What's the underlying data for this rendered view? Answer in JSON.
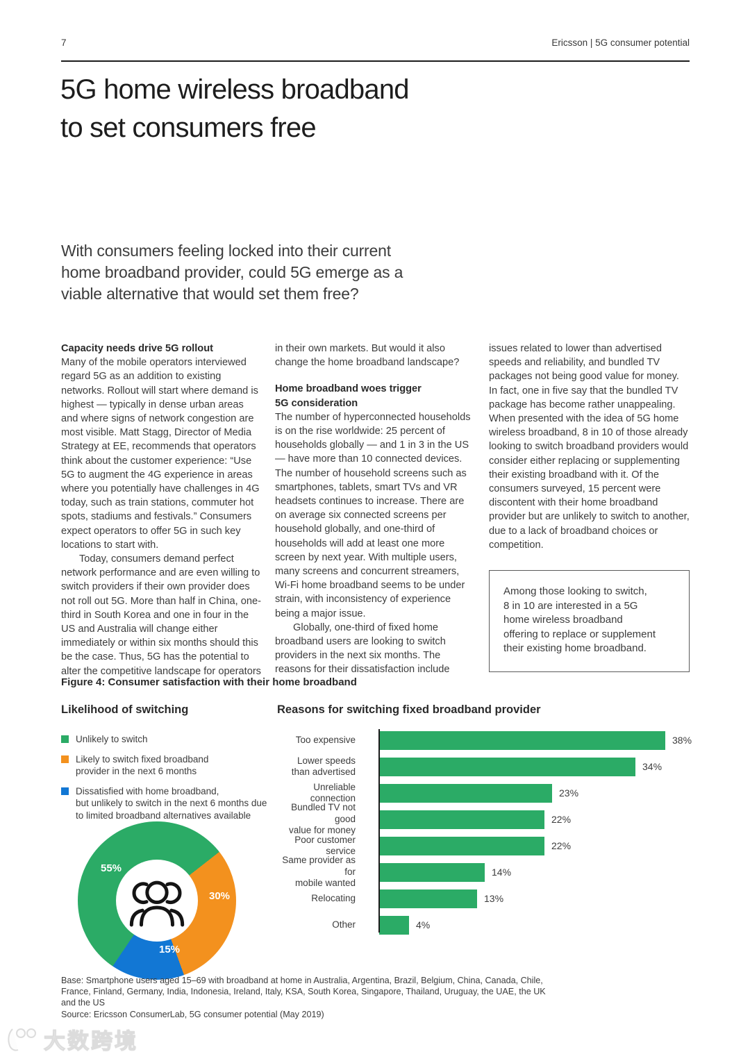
{
  "header": {
    "page_number": "7",
    "right": "Ericsson  |  5G consumer potential"
  },
  "title": "5G home wireless broadband\nto set consumers free",
  "intro": "With consumers feeling locked into their current\nhome broadband provider, could 5G emerge as a\nviable alternative that would set them free?",
  "article": {
    "col1": {
      "heading": "Capacity needs drive 5G rollout",
      "para1": "Many of the mobile operators interviewed regard 5G as an addition to existing networks. Rollout will start where demand is highest — typically in dense urban areas and where signs of network congestion are most visible. Matt Stagg, Director of Media Strategy at EE, recommends that operators think about the customer experience: “Use 5G to augment the 4G experience in areas where you potentially have challenges in 4G today, such as train stations, commuter hot spots, stadiums and festivals.” Consumers expect operators to offer 5G in such key locations to start with.",
      "para2": "Today, consumers demand perfect network performance and are even willing to switch providers if their own provider does not roll out 5G. More than half in China, one-third in South Korea and one in four in the US and Australia will change either immediately or within six months should this be the case. Thus, 5G has the potential to alter the competitive landscape for operators"
    },
    "col2": {
      "lead": "in their own markets. But would it also change the home broadband landscape?",
      "heading": "Home broadband woes trigger\n5G consideration",
      "para1": "The number of hyperconnected households is on the rise worldwide: 25 percent of households globally — and 1 in 3 in the US — have more than 10 connected devices. The number of household screens such as smartphones, tablets, smart TVs and VR headsets continues to increase. There are on average six connected screens per household globally, and one-third of households will add at least one more screen by next year. With multiple users, many screens and concurrent streamers, Wi-Fi home broadband seems to be under strain, with inconsistency of experience being a major issue.",
      "para2": "Globally, one-third of fixed home broadband users are looking to switch providers in the next six months. The reasons for their dissatisfaction include"
    },
    "col3": {
      "para": "issues related to lower than advertised speeds and reliability, and bundled TV packages not being good value for money. In fact, one in five say that the bundled TV package has become rather unappealing. When presented with the idea of 5G home wireless broadband, 8 in 10 of those already looking to switch broadband providers would consider either replacing or supplementing their existing broadband with it. Of the consumers surveyed, 15 percent were discontent with their home broadband provider but are unlikely to switch to another, due to a lack of broadband choices or competition.",
      "callout": "Among those looking to switch,\n8 in 10 are interested in a 5G\nhome wireless broadband\noffering to replace or supplement\ntheir existing home broadband."
    }
  },
  "figure": {
    "caption": "Figure 4: Consumer satisfaction with their home broadband"
  },
  "chart_data": [
    {
      "type": "pie",
      "subtype": "donut",
      "title": "Likelihood of switching",
      "unit": "%",
      "legend_position": "above",
      "center_icon": "people-group",
      "segments": [
        {
          "label": "Unlikely to switch",
          "value": 55,
          "color": "#2bab66"
        },
        {
          "label": "Likely to switch fixed broadband\nprovider in the next 6 months",
          "value": 30,
          "color": "#f3911e"
        },
        {
          "label": "Dissatisfied with home broadband,\nbut unlikely to switch in the next 6 months due\nto limited broadband alternatives available",
          "value": 15,
          "color": "#1277d4"
        }
      ]
    },
    {
      "type": "bar",
      "orientation": "horizontal",
      "title": "Reasons for switching fixed broadband provider",
      "unit": "%",
      "color": "#2bab66",
      "xlim": [
        0,
        40
      ],
      "grid": false,
      "items": [
        {
          "label": "Too expensive",
          "value": 38
        },
        {
          "label": "Lower speeds\nthan advertised",
          "value": 34
        },
        {
          "label": "Unreliable connection",
          "value": 23
        },
        {
          "label": "Bundled TV not good\nvalue for money",
          "value": 22
        },
        {
          "label": "Poor customer service",
          "value": 22
        },
        {
          "label": "Same provider as for\nmobile wanted",
          "value": 14
        },
        {
          "label": "Relocating",
          "value": 13
        },
        {
          "label": "Other",
          "value": 4
        }
      ]
    }
  ],
  "footnote": {
    "base": "Base: Smartphone users aged 15–69 with broadband at home in Australia, Argentina, Brazil, Belgium, China, Canada, Chile, France, Finland, Germany, India, Indonesia, Ireland, Italy, KSA, South Korea, Singapore, Thailand, Uruguay, the UAE, the UK and the US",
    "source": "Source: Ericsson ConsumerLab, 5G consumer potential (May 2019)"
  },
  "watermark": {
    "text": "大数跨境"
  }
}
